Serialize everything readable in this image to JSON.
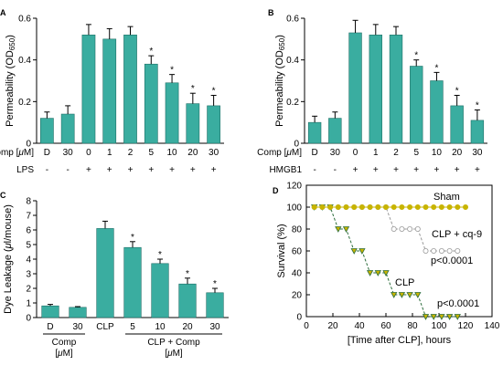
{
  "chart_data": [
    {
      "panel": "A",
      "type": "bar",
      "ylabel": "Permeability (OD",
      "ylabel_sub": "650",
      "ylabel_close": ")",
      "ylim": [
        0,
        0.6
      ],
      "yticks": [
        "0",
        "0.2",
        "0.4",
        "0.6"
      ],
      "categories": [
        "D",
        "30",
        "0",
        "1",
        "2",
        "5",
        "10",
        "20",
        "30"
      ],
      "values": [
        0.12,
        0.14,
        0.52,
        0.5,
        0.52,
        0.38,
        0.29,
        0.19,
        0.18
      ],
      "errors": [
        0.03,
        0.04,
        0.05,
        0.05,
        0.04,
        0.04,
        0.04,
        0.05,
        0.05
      ],
      "significant": [
        false,
        false,
        false,
        false,
        false,
        true,
        true,
        true,
        true
      ],
      "row1_label_prefix": "Comp [",
      "row1_label_italic": "μ",
      "row1_label_suffix": "M]",
      "row2_label": "LPS",
      "row2_values": [
        "-",
        "-",
        "+",
        "+",
        "+",
        "+",
        "+",
        "+",
        "+"
      ],
      "bar_color": "#3aada0"
    },
    {
      "panel": "B",
      "type": "bar",
      "ylabel": "Permeability (OD",
      "ylabel_sub": "650",
      "ylabel_close": ")",
      "ylim": [
        0,
        0.6
      ],
      "yticks": [
        "0",
        "0.2",
        "0.4",
        "0.6"
      ],
      "categories": [
        "D",
        "30",
        "0",
        "1",
        "2",
        "5",
        "10",
        "20",
        "30"
      ],
      "values": [
        0.1,
        0.12,
        0.53,
        0.52,
        0.52,
        0.37,
        0.3,
        0.18,
        0.11
      ],
      "errors": [
        0.03,
        0.03,
        0.06,
        0.05,
        0.04,
        0.03,
        0.04,
        0.05,
        0.05
      ],
      "significant": [
        false,
        false,
        false,
        false,
        false,
        true,
        true,
        true,
        true
      ],
      "row1_label_prefix": "Comp [",
      "row1_label_italic": "μ",
      "row1_label_suffix": "M]",
      "row2_label": "HMGB1",
      "row2_values": [
        "-",
        "-",
        "+",
        "+",
        "+",
        "+",
        "+",
        "+",
        "+"
      ],
      "bar_color": "#3aada0"
    },
    {
      "panel": "C",
      "type": "bar",
      "ylabel_prefix": "Dye Leakage (",
      "ylabel_italic": "μ",
      "ylabel_suffix": "l/mouse)",
      "ylim": [
        0,
        8
      ],
      "yticks": [
        "0",
        "1",
        "2",
        "3",
        "4",
        "5",
        "6",
        "7",
        "8"
      ],
      "categories": [
        "D",
        "30",
        "CLP",
        "5",
        "10",
        "20",
        "30"
      ],
      "values": [
        0.8,
        0.7,
        6.1,
        4.8,
        3.7,
        2.3,
        1.7
      ],
      "errors": [
        0.1,
        0.05,
        0.5,
        0.4,
        0.3,
        0.4,
        0.3
      ],
      "significant": [
        false,
        false,
        false,
        true,
        true,
        true,
        true
      ],
      "group1_line1": "Comp",
      "group1_line2_prefix": "[",
      "group1_line2_italic": "μ",
      "group1_line2_suffix": "M]",
      "group2_line1": "CLP + Comp",
      "group2_line2_prefix": "[",
      "group2_line2_italic": "μ",
      "group2_line2_suffix": "M]",
      "bar_color": "#3aada0"
    },
    {
      "panel": "D",
      "type": "line",
      "xlabel": "[Time after CLP], hours",
      "ylabel": "Survival (%)",
      "xlim": [
        0,
        140
      ],
      "ylim": [
        0,
        120
      ],
      "xticks": [
        "0",
        "20",
        "40",
        "60",
        "80",
        "100",
        "120",
        "140"
      ],
      "yticks": [
        "0",
        "20",
        "40",
        "60",
        "80",
        "100",
        "120"
      ],
      "series": [
        {
          "name": "Sham",
          "x": [
            6,
            12,
            18,
            24,
            30,
            36,
            42,
            48,
            54,
            60,
            66,
            72,
            78,
            84,
            90,
            96,
            102,
            108,
            114,
            120
          ],
          "y": [
            100,
            100,
            100,
            100,
            100,
            100,
            100,
            100,
            100,
            100,
            100,
            100,
            100,
            100,
            100,
            100,
            100,
            100,
            100,
            100
          ],
          "marker": "circle",
          "color": "#c8b400",
          "fill": "#c8b400"
        },
        {
          "name": "CLP + cq-9",
          "x": [
            6,
            12,
            18,
            24,
            30,
            36,
            42,
            48,
            54,
            60,
            66,
            72,
            78,
            84,
            90,
            96,
            102,
            108,
            114
          ],
          "y": [
            100,
            100,
            100,
            100,
            100,
            100,
            100,
            100,
            100,
            100,
            80,
            80,
            80,
            80,
            60,
            60,
            60,
            60,
            60
          ],
          "marker": "circle",
          "color": "#9a9a9a",
          "fill": "#ffffff"
        },
        {
          "name": "CLP",
          "x": [
            6,
            12,
            18,
            24,
            30,
            36,
            42,
            48,
            54,
            60,
            66,
            72,
            78,
            84,
            90,
            96,
            102,
            108,
            114
          ],
          "y": [
            100,
            100,
            100,
            80,
            80,
            60,
            60,
            40,
            40,
            40,
            20,
            20,
            20,
            20,
            0,
            0,
            0,
            0,
            0
          ],
          "marker": "triangle-down",
          "color": "#2f6f3e",
          "fill": "#c8b400"
        }
      ],
      "annotations": [
        "Sham",
        "CLP + cq-9",
        "p<0.0001",
        "CLP",
        "p<0.0001"
      ]
    }
  ]
}
